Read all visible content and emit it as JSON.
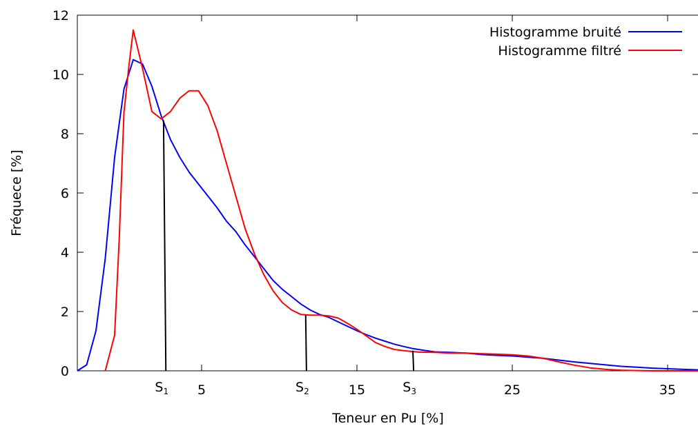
{
  "chart_data": {
    "type": "line",
    "title": "",
    "xlabel": "Teneur en Pu [%]",
    "ylabel": "Fréquece [%]",
    "xlim": [
      -3,
      37
    ],
    "ylim": [
      0,
      12
    ],
    "x_ticks": [
      5,
      15,
      25,
      35
    ],
    "y_ticks": [
      0,
      2,
      4,
      6,
      8,
      10,
      12
    ],
    "grid": false,
    "legend_position": "top-right",
    "series": [
      {
        "name": "Histogramme bruité",
        "color": "#0000ff",
        "points": [
          [
            -3,
            0
          ],
          [
            -2.4,
            0.2
          ],
          [
            -1.8,
            1.35
          ],
          [
            -1.2,
            3.8
          ],
          [
            -0.6,
            7.2
          ],
          [
            0,
            9.5
          ],
          [
            0.6,
            10.5
          ],
          [
            1.2,
            10.35
          ],
          [
            1.8,
            9.6
          ],
          [
            2.4,
            8.6
          ],
          [
            3,
            7.8
          ],
          [
            3.6,
            7.2
          ],
          [
            4.2,
            6.7
          ],
          [
            4.8,
            6.3
          ],
          [
            5.4,
            5.9
          ],
          [
            6,
            5.5
          ],
          [
            6.6,
            5.05
          ],
          [
            7.2,
            4.7
          ],
          [
            7.8,
            4.25
          ],
          [
            8.4,
            3.85
          ],
          [
            9,
            3.45
          ],
          [
            9.6,
            3.05
          ],
          [
            10.2,
            2.75
          ],
          [
            10.8,
            2.5
          ],
          [
            11.4,
            2.25
          ],
          [
            12,
            2.05
          ],
          [
            12.6,
            1.9
          ],
          [
            13.2,
            1.8
          ],
          [
            13.8,
            1.65
          ],
          [
            14.4,
            1.5
          ],
          [
            15,
            1.35
          ],
          [
            15.6,
            1.22
          ],
          [
            16.2,
            1.1
          ],
          [
            16.8,
            1.0
          ],
          [
            17.4,
            0.9
          ],
          [
            18,
            0.82
          ],
          [
            18.6,
            0.75
          ],
          [
            19.2,
            0.7
          ],
          [
            20,
            0.64
          ],
          [
            21,
            0.62
          ],
          [
            22,
            0.6
          ],
          [
            23,
            0.55
          ],
          [
            24,
            0.52
          ],
          [
            25,
            0.5
          ],
          [
            26,
            0.46
          ],
          [
            27,
            0.42
          ],
          [
            28,
            0.36
          ],
          [
            29,
            0.3
          ],
          [
            30,
            0.25
          ],
          [
            31,
            0.2
          ],
          [
            32,
            0.15
          ],
          [
            33,
            0.12
          ],
          [
            34,
            0.09
          ],
          [
            35,
            0.07
          ],
          [
            36,
            0.05
          ],
          [
            37,
            0.03
          ]
        ]
      },
      {
        "name": "Histogramme filtré",
        "color": "#ff0000",
        "points": [
          [
            -1.2,
            0
          ],
          [
            -0.6,
            1.2
          ],
          [
            -0.3,
            4.5
          ],
          [
            0,
            8.7
          ],
          [
            0.3,
            10.2
          ],
          [
            0.6,
            11.5
          ],
          [
            1.2,
            10.2
          ],
          [
            1.8,
            8.75
          ],
          [
            2.4,
            8.5
          ],
          [
            3,
            8.75
          ],
          [
            3.6,
            9.2
          ],
          [
            4.2,
            9.45
          ],
          [
            4.8,
            9.45
          ],
          [
            5.4,
            8.95
          ],
          [
            6,
            8.1
          ],
          [
            6.6,
            7.0
          ],
          [
            7.2,
            5.9
          ],
          [
            7.8,
            4.8
          ],
          [
            8.4,
            3.95
          ],
          [
            9,
            3.25
          ],
          [
            9.6,
            2.7
          ],
          [
            10.2,
            2.3
          ],
          [
            10.8,
            2.05
          ],
          [
            11.4,
            1.9
          ],
          [
            12,
            1.88
          ],
          [
            12.6,
            1.88
          ],
          [
            13.2,
            1.85
          ],
          [
            13.8,
            1.78
          ],
          [
            14.4,
            1.6
          ],
          [
            15,
            1.4
          ],
          [
            15.6,
            1.18
          ],
          [
            16.2,
            0.95
          ],
          [
            16.8,
            0.82
          ],
          [
            17.4,
            0.72
          ],
          [
            18,
            0.68
          ],
          [
            19,
            0.63
          ],
          [
            20,
            0.62
          ],
          [
            21,
            0.6
          ],
          [
            22,
            0.6
          ],
          [
            23,
            0.58
          ],
          [
            24,
            0.56
          ],
          [
            25,
            0.54
          ],
          [
            26,
            0.5
          ],
          [
            27,
            0.42
          ],
          [
            28,
            0.3
          ],
          [
            29,
            0.19
          ],
          [
            30,
            0.1
          ],
          [
            31,
            0.05
          ],
          [
            32,
            0.02
          ],
          [
            33,
            0.01
          ],
          [
            34,
            0
          ],
          [
            37,
            0
          ]
        ]
      }
    ],
    "markers": [
      {
        "label": "S",
        "subscript": "1",
        "x1": 2.55,
        "y1": 8.45,
        "x2": 2.7,
        "y2": 0
      },
      {
        "label": "S",
        "subscript": "2",
        "x1": 11.7,
        "y1": 1.88,
        "x2": 11.75,
        "y2": 0
      },
      {
        "label": "S",
        "subscript": "3",
        "x1": 18.6,
        "y1": 0.68,
        "x2": 18.65,
        "y2": 0
      }
    ]
  }
}
